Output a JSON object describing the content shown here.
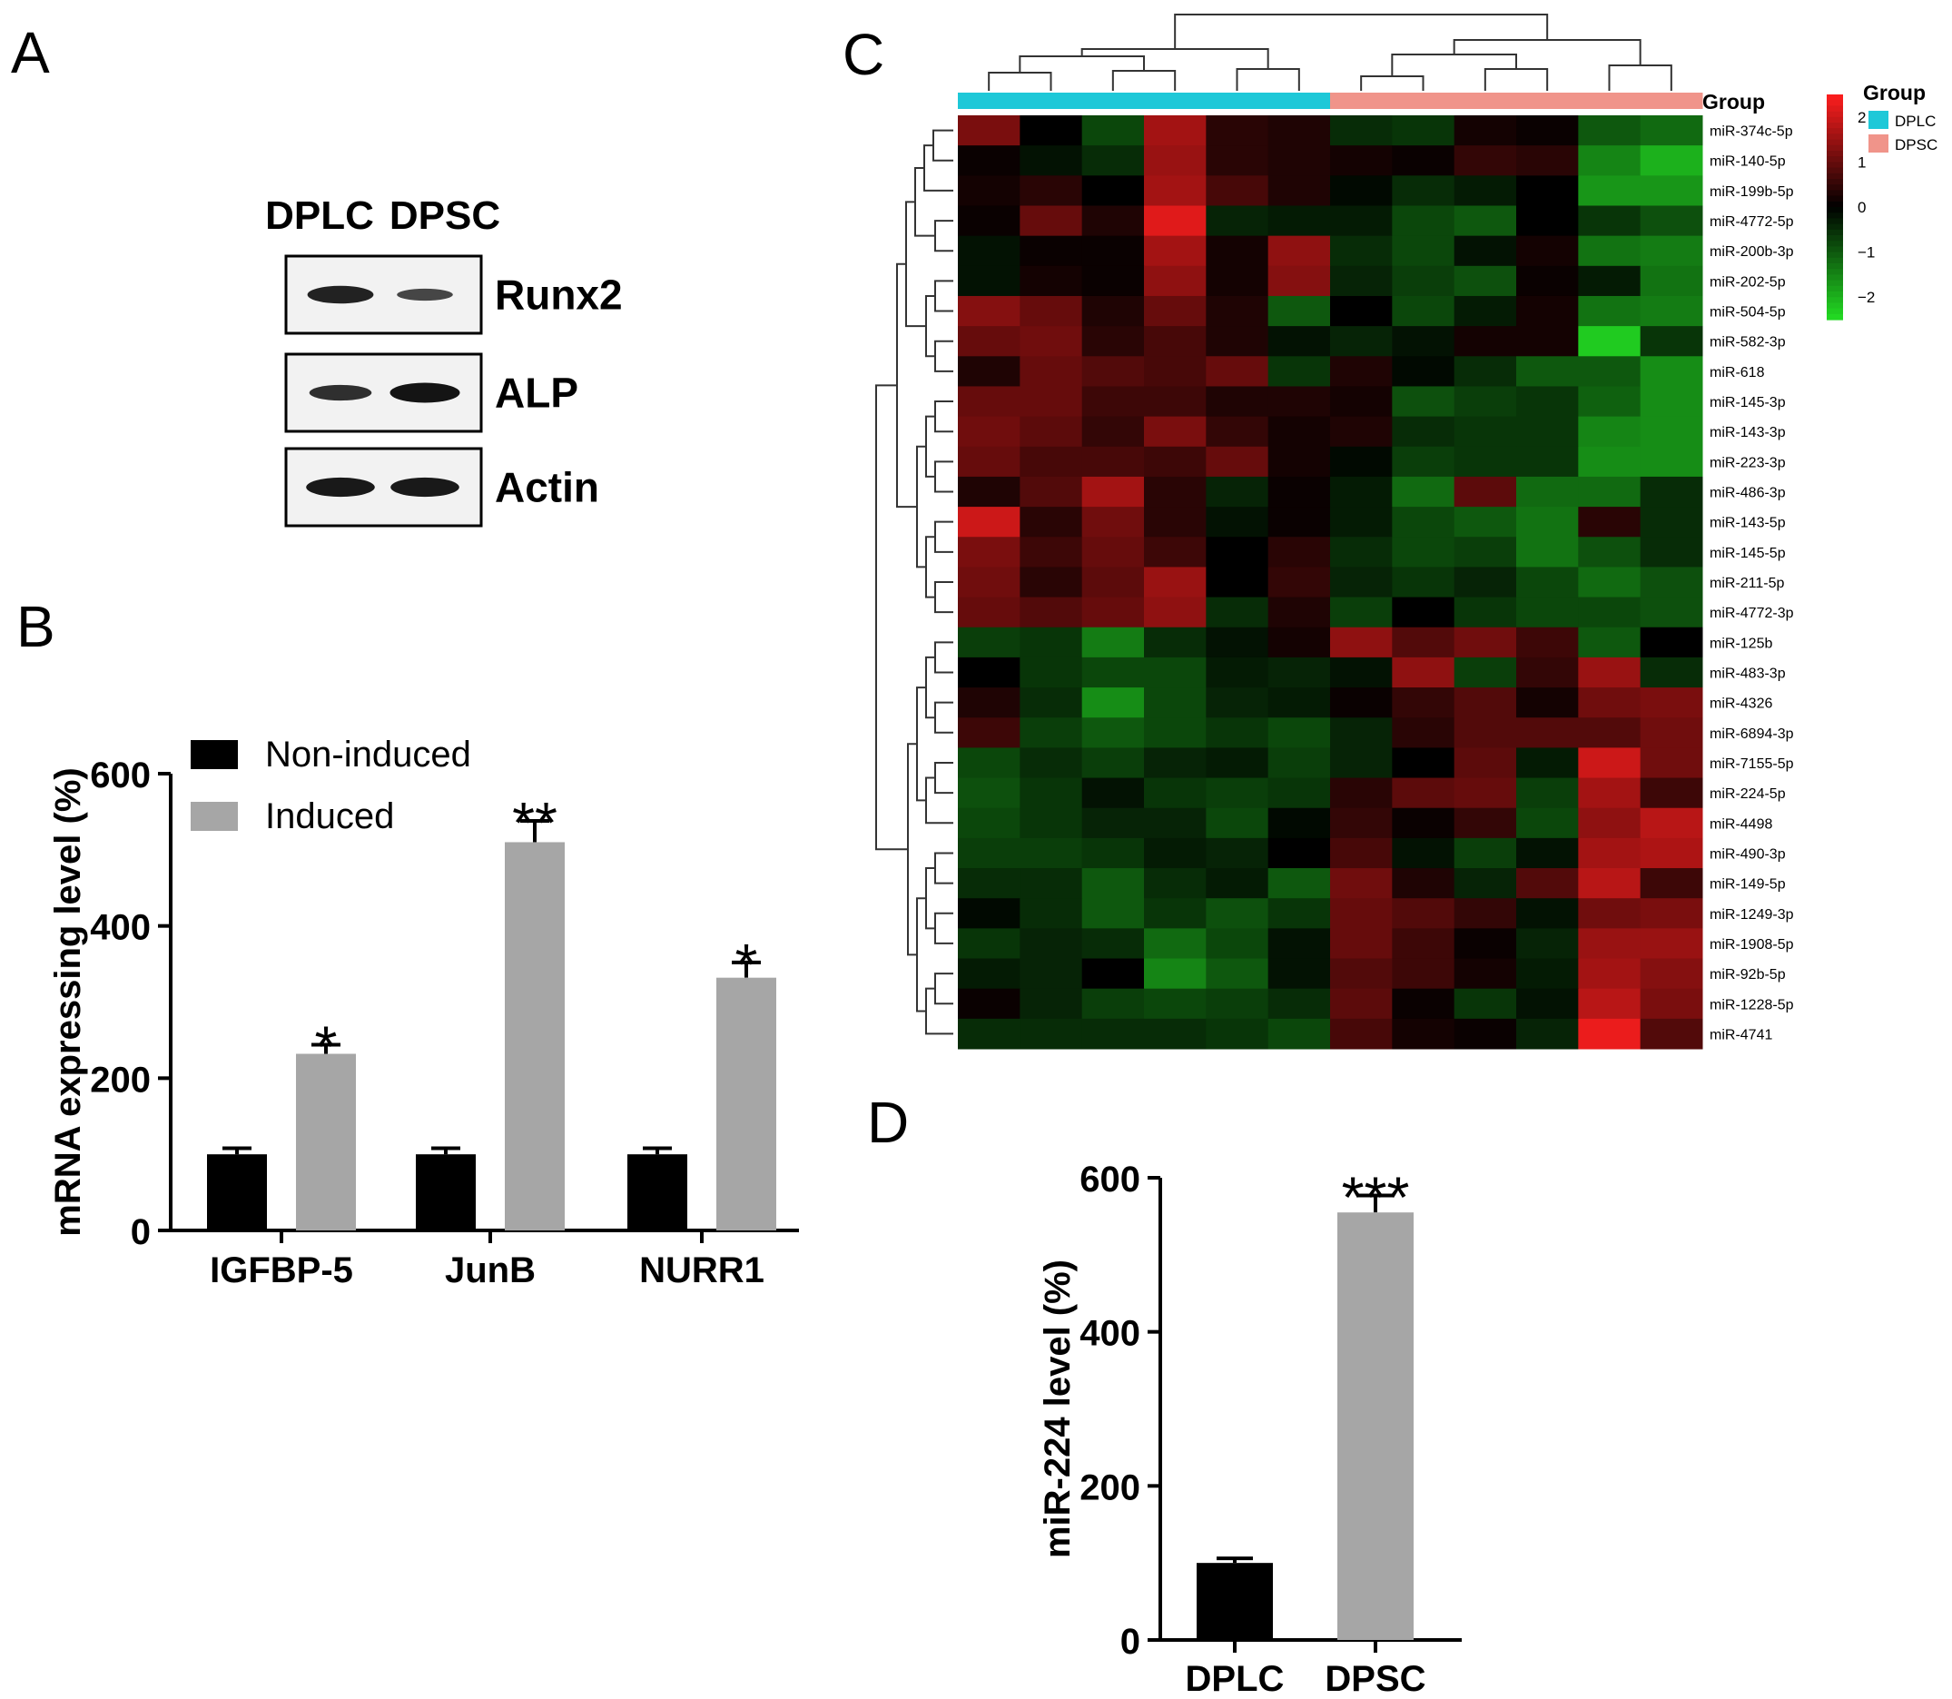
{
  "panels": {
    "a": {
      "letter": "A",
      "lanes": [
        "DPLC",
        "DPSC"
      ],
      "blots": [
        {
          "label": "Runx2",
          "intensity": [
            0.85,
            0.45
          ]
        },
        {
          "label": "ALP",
          "intensity": [
            0.7,
            1.0
          ]
        },
        {
          "label": "Actin",
          "intensity": [
            0.95,
            0.95
          ]
        }
      ]
    },
    "b": {
      "letter": "B"
    },
    "c": {
      "letter": "C",
      "group_label": "Group",
      "legend_title": "Group",
      "groups": [
        {
          "name": "DPLC",
          "color": "#1ec8d8"
        },
        {
          "name": "DPSC",
          "color": "#f0948a"
        }
      ],
      "scale_ticks": [
        "2",
        "1",
        "0",
        "−1",
        "−2"
      ]
    },
    "d": {
      "letter": "D"
    }
  },
  "chart_data": [
    {
      "type": "bar",
      "panel": "B",
      "categories": [
        "IGFBP-5",
        "JunB",
        "NURR1"
      ],
      "series": [
        {
          "name": "Non-induced",
          "color": "#000000",
          "values": [
            100,
            100,
            100
          ],
          "errors": [
            8,
            8,
            8
          ]
        },
        {
          "name": "Induced",
          "color": "#a6a6a6",
          "values": [
            232,
            510,
            332
          ],
          "errors": [
            12,
            28,
            20
          ]
        }
      ],
      "significance": [
        "*",
        "**",
        "*"
      ],
      "ylabel": "mRNA expressing level (%)",
      "ylim": [
        0,
        600
      ],
      "yticks": [
        0,
        200,
        400,
        600
      ],
      "legend": "top-left"
    },
    {
      "type": "heatmap",
      "panel": "C",
      "columns": [
        "DPLC",
        "DPLC",
        "DPLC",
        "DPLC",
        "DPLC",
        "DPLC",
        "DPSC",
        "DPSC",
        "DPSC",
        "DPSC",
        "DPSC",
        "DPSC"
      ],
      "rows": [
        "miR-374c-5p",
        "miR-140-5p",
        "miR-199b-5p",
        "miR-4772-5p",
        "miR-200b-3p",
        "miR-202-5p",
        "miR-504-5p",
        "miR-582-3p",
        "miR-618",
        "miR-145-3p",
        "miR-143-3p",
        "miR-223-3p",
        "miR-486-3p",
        "miR-143-5p",
        "miR-145-5p",
        "miR-211-5p",
        "miR-4772-3p",
        "miR-125b",
        "miR-483-3p",
        "miR-4326",
        "miR-6894-3p",
        "miR-7155-5p",
        "miR-224-5p",
        "miR-4498",
        "miR-490-3p",
        "miR-149-5p",
        "miR-1249-3p",
        "miR-1908-5p",
        "miR-92b-5p",
        "miR-1228-5p",
        "miR-4741"
      ],
      "values": [
        [
          1.2,
          0.0,
          -0.8,
          1.6,
          0.4,
          0.3,
          -0.5,
          -0.6,
          0.2,
          0.1,
          -1.0,
          -1.2
        ],
        [
          0.1,
          -0.2,
          -0.5,
          1.5,
          0.4,
          0.3,
          0.2,
          0.1,
          0.5,
          0.4,
          -1.5,
          -2.0
        ],
        [
          0.2,
          0.4,
          0.0,
          1.6,
          0.7,
          0.3,
          -0.1,
          -0.5,
          -0.3,
          0.0,
          -1.7,
          -1.7
        ],
        [
          0.1,
          1.0,
          0.3,
          2.2,
          -0.4,
          -0.3,
          -0.3,
          -0.8,
          -1.0,
          0.0,
          -0.6,
          -0.9
        ],
        [
          -0.2,
          0.1,
          0.1,
          1.6,
          0.2,
          1.4,
          -0.5,
          -0.8,
          -0.2,
          0.2,
          -1.3,
          -1.4
        ],
        [
          -0.2,
          0.2,
          0.1,
          1.4,
          0.2,
          1.3,
          -0.4,
          -0.7,
          -0.9,
          0.1,
          -0.3,
          -1.3
        ],
        [
          1.3,
          1.0,
          0.3,
          1.0,
          0.3,
          -1.0,
          0.0,
          -0.8,
          -0.3,
          0.2,
          -1.3,
          -1.4
        ],
        [
          1.0,
          1.1,
          0.4,
          0.7,
          0.3,
          -0.2,
          -0.4,
          -0.2,
          0.2,
          0.2,
          -2.3,
          -0.6
        ],
        [
          0.3,
          1.0,
          0.8,
          0.7,
          1.0,
          -0.6,
          0.3,
          -0.1,
          -0.5,
          -1.0,
          -1.0,
          -1.6
        ],
        [
          1.0,
          1.0,
          0.6,
          0.6,
          0.3,
          0.3,
          0.2,
          -0.9,
          -0.7,
          -0.6,
          -1.1,
          -1.6
        ],
        [
          1.1,
          0.9,
          0.5,
          1.2,
          0.5,
          0.2,
          0.3,
          -0.5,
          -0.6,
          -0.6,
          -1.5,
          -1.6
        ],
        [
          1.0,
          0.7,
          0.7,
          0.6,
          1.0,
          0.2,
          -0.1,
          -0.7,
          -0.6,
          -0.6,
          -1.6,
          -1.6
        ],
        [
          0.3,
          0.8,
          1.6,
          0.4,
          -0.4,
          0.1,
          -0.3,
          -1.2,
          0.9,
          -1.2,
          -1.2,
          -0.5
        ],
        [
          2.0,
          0.4,
          1.1,
          0.4,
          -0.2,
          0.1,
          -0.3,
          -0.8,
          -1.0,
          -1.3,
          0.4,
          -0.5
        ],
        [
          1.2,
          0.6,
          1.0,
          0.6,
          0.0,
          0.4,
          -0.5,
          -0.8,
          -0.7,
          -1.3,
          -0.9,
          -0.5
        ],
        [
          1.1,
          0.4,
          0.9,
          1.5,
          0.0,
          0.5,
          -0.4,
          -0.6,
          -0.4,
          -0.8,
          -1.2,
          -0.9
        ],
        [
          1.0,
          0.8,
          1.0,
          1.4,
          -0.5,
          0.3,
          -0.7,
          0.0,
          -0.6,
          -0.8,
          -0.8,
          -0.9
        ],
        [
          -0.7,
          -0.6,
          -1.4,
          -0.5,
          -0.2,
          0.2,
          1.4,
          0.8,
          1.1,
          0.6,
          -1.0,
          0.0
        ],
        [
          0.0,
          -0.6,
          -0.8,
          -0.8,
          -0.3,
          -0.4,
          -0.2,
          1.4,
          -0.7,
          0.5,
          1.5,
          -0.5
        ],
        [
          0.3,
          -0.5,
          -1.6,
          -0.8,
          -0.4,
          -0.3,
          0.1,
          0.5,
          0.8,
          0.2,
          1.1,
          1.2
        ],
        [
          0.6,
          -0.7,
          -1.0,
          -0.8,
          -0.6,
          -0.8,
          -0.4,
          0.4,
          0.8,
          0.8,
          0.8,
          1.1
        ],
        [
          -0.8,
          -0.5,
          -0.7,
          -0.4,
          -0.3,
          -0.7,
          -0.4,
          0.0,
          0.9,
          -0.3,
          2.0,
          1.1
        ],
        [
          -0.9,
          -0.6,
          -0.2,
          -0.6,
          -0.7,
          -0.6,
          0.4,
          0.9,
          1.0,
          -0.7,
          1.6,
          0.6
        ],
        [
          -0.8,
          -0.6,
          -0.4,
          -0.4,
          -0.8,
          -0.1,
          0.5,
          0.1,
          0.5,
          -0.8,
          1.4,
          1.8
        ],
        [
          -0.7,
          -0.7,
          -0.6,
          -0.3,
          -0.4,
          0.0,
          0.7,
          -0.2,
          -0.7,
          -0.2,
          1.6,
          1.7
        ],
        [
          -0.5,
          -0.5,
          -1.0,
          -0.5,
          -0.3,
          -1.0,
          1.1,
          0.3,
          -0.4,
          0.8,
          1.8,
          0.6
        ],
        [
          -0.1,
          -0.5,
          -1.0,
          -0.6,
          -0.9,
          -0.6,
          1.0,
          0.8,
          0.5,
          -0.2,
          1.1,
          1.2
        ],
        [
          -0.6,
          -0.4,
          -0.5,
          -1.2,
          -0.8,
          -0.2,
          1.0,
          0.6,
          0.1,
          -0.4,
          1.5,
          1.5
        ],
        [
          -0.3,
          -0.4,
          0.0,
          -1.5,
          -1.0,
          -0.2,
          0.8,
          0.6,
          0.2,
          -0.3,
          1.6,
          1.3
        ],
        [
          0.1,
          -0.4,
          -0.7,
          -0.8,
          -0.7,
          -0.5,
          0.9,
          0.1,
          -0.6,
          -0.2,
          1.8,
          1.2
        ],
        [
          -0.5,
          -0.5,
          -0.5,
          -0.5,
          -0.6,
          -0.8,
          0.7,
          0.2,
          0.1,
          -0.4,
          2.3,
          0.8
        ]
      ],
      "color_scale": {
        "min": -2.5,
        "max": 2.5,
        "low": "#22dd22",
        "mid": "#000000",
        "high": "#ff2020"
      }
    },
    {
      "type": "bar",
      "panel": "D",
      "categories": [
        "DPLC",
        "DPSC"
      ],
      "values": [
        100,
        555
      ],
      "errors": [
        6,
        22
      ],
      "colors": [
        "#000000",
        "#a6a6a6"
      ],
      "significance": [
        "",
        "***"
      ],
      "ylabel": "miR-224 level (%)",
      "ylim": [
        0,
        600
      ],
      "yticks": [
        0,
        200,
        400,
        600
      ]
    }
  ]
}
